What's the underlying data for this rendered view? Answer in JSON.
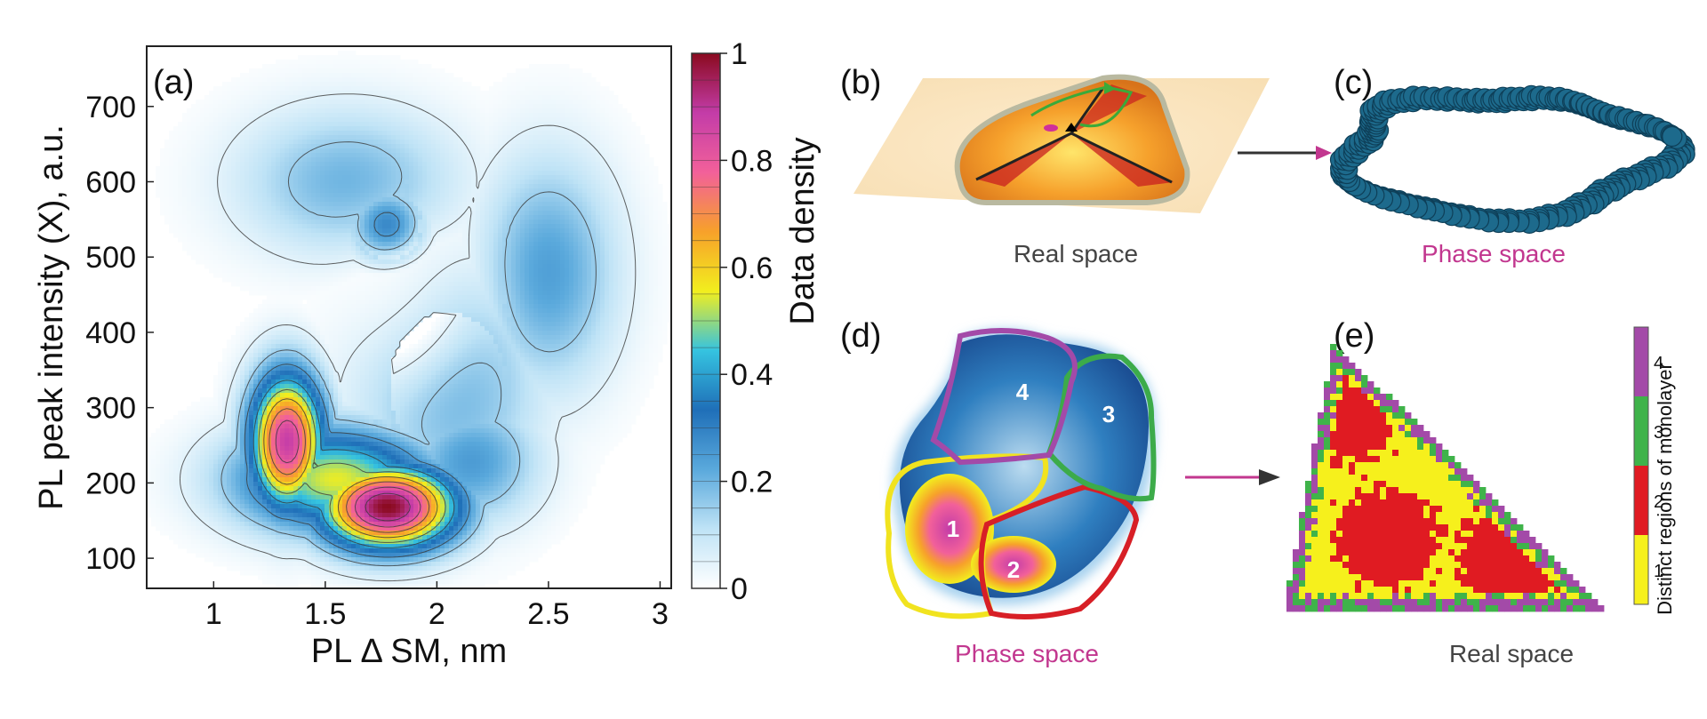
{
  "chart_data": [
    {
      "type": "heatmap",
      "panel_label": "(a)",
      "xlabel": "PL Δ SM, nm",
      "ylabel": "PL peak intensity (X), a.u.",
      "xlim": [
        0.7,
        3.05
      ],
      "ylim": [
        60,
        780
      ],
      "x_ticks": [
        1,
        1.5,
        2,
        2.5,
        3
      ],
      "x_tick_labels": [
        "1",
        "1.5",
        "2",
        "2.5",
        "3"
      ],
      "y_ticks": [
        100,
        200,
        300,
        400,
        500,
        600,
        700
      ],
      "y_tick_labels": [
        "100",
        "200",
        "300",
        "400",
        "500",
        "600",
        "700"
      ],
      "colorbar": {
        "label": "Data density",
        "range": [
          0,
          1
        ],
        "ticks": [
          0,
          0.2,
          0.4,
          0.6,
          0.8,
          1
        ],
        "tick_labels": [
          "0",
          "0.2",
          "0.4",
          "0.6",
          "0.8",
          "1"
        ],
        "colormap": [
          "#ffffff",
          "#bfe3f6",
          "#5aa9dc",
          "#1f6fb8",
          "#35c3e0",
          "#f2ee1e",
          "#f7a12a",
          "#f2609a",
          "#c33ca8",
          "#8a0a1f"
        ]
      },
      "density_peaks": [
        {
          "x": 1.33,
          "y": 255,
          "value": 0.88,
          "sx": 0.12,
          "sy": 65
        },
        {
          "x": 1.78,
          "y": 168,
          "value": 1.0,
          "sx": 0.22,
          "sy": 40
        },
        {
          "x": 1.55,
          "y": 205,
          "value": 0.55,
          "sx": 0.32,
          "sy": 50
        },
        {
          "x": 1.78,
          "y": 540,
          "value": 0.32,
          "sx": 0.12,
          "sy": 35
        },
        {
          "x": 2.5,
          "y": 480,
          "value": 0.24,
          "sx": 0.22,
          "sy": 110
        },
        {
          "x": 2.05,
          "y": 330,
          "value": 0.22,
          "sx": 0.3,
          "sy": 110
        },
        {
          "x": 1.6,
          "y": 600,
          "value": 0.2,
          "sx": 0.35,
          "sy": 70
        },
        {
          "x": 2.15,
          "y": 230,
          "value": 0.25,
          "sx": 0.22,
          "sy": 60
        }
      ],
      "density_dip": {
        "x": 1.88,
        "y": 415,
        "value": 0.22,
        "sx": 0.2,
        "sy": 75
      }
    },
    {
      "panel_label": "(b)",
      "caption": "Real space"
    },
    {
      "panel_label": "(c)",
      "caption": "Phase space"
    },
    {
      "panel_label": "(d)",
      "caption": "Phase space",
      "regions": [
        "1",
        "2",
        "3",
        "4"
      ],
      "region_colors": [
        "#f1e31f",
        "#d71f26",
        "#3cab4a",
        "#a34aa8"
      ]
    },
    {
      "panel_label": "(e)",
      "caption": "Real space",
      "legend_title": "Distinct regions of monolayer",
      "legend_ticks": [
        "1",
        "2",
        "3",
        "4"
      ],
      "legend_colors": [
        "#f6f01c",
        "#e01b22",
        "#3fb34a",
        "#a34aa8"
      ]
    }
  ],
  "colors": {
    "phase_space_caption": "#c2378f",
    "real_space_caption": "#444444",
    "arrow": "#c2378f"
  }
}
